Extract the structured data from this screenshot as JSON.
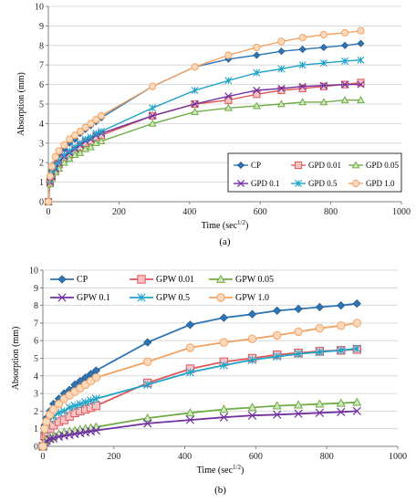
{
  "chart_data": [
    {
      "type": "line",
      "panel_label": "(a)",
      "ylabel": "Absorption (mm)",
      "xlabel_base": "Time (sec",
      "xlabel_sup": "1/2",
      "xlabel_end": ")",
      "xlim": [
        0,
        1000
      ],
      "ylim": [
        0,
        10
      ],
      "xticks": [
        0,
        200,
        400,
        600,
        800,
        1000
      ],
      "yticks": [
        0,
        1,
        2,
        3,
        4,
        5,
        6,
        7,
        8,
        9,
        10
      ],
      "grid": "horizontal",
      "legend_placement": "bottom-right",
      "series": [
        {
          "name": "CP",
          "color": "#2E75B6",
          "marker": "diamond",
          "x": [
            0,
            5,
            10,
            20,
            30,
            45,
            60,
            75,
            90,
            105,
            120,
            135,
            150,
            295,
            415,
            510,
            590,
            660,
            720,
            780,
            840,
            885
          ],
          "y": [
            0,
            1.2,
            1.6,
            2.0,
            2.4,
            2.7,
            3.0,
            3.2,
            3.5,
            3.7,
            3.9,
            4.1,
            4.3,
            5.9,
            6.9,
            7.3,
            7.5,
            7.7,
            7.8,
            7.9,
            8.0,
            8.1
          ]
        },
        {
          "name": "GPD 0.01",
          "color": "#E15759",
          "marker": "square",
          "x": [
            0,
            5,
            10,
            20,
            30,
            45,
            60,
            75,
            90,
            105,
            120,
            135,
            150,
            295,
            415,
            510,
            590,
            660,
            720,
            780,
            840,
            885
          ],
          "y": [
            0,
            1.0,
            1.3,
            1.6,
            1.9,
            2.2,
            2.4,
            2.6,
            2.8,
            3.0,
            3.1,
            3.3,
            3.4,
            4.4,
            5.0,
            5.2,
            5.5,
            5.7,
            5.8,
            5.9,
            6.0,
            6.1
          ]
        },
        {
          "name": "GPD 0.05",
          "color": "#70AD47",
          "marker": "triangle",
          "x": [
            0,
            5,
            10,
            20,
            30,
            45,
            60,
            75,
            90,
            105,
            120,
            135,
            150,
            295,
            415,
            510,
            590,
            660,
            720,
            780,
            840,
            885
          ],
          "y": [
            0,
            0.9,
            1.2,
            1.5,
            1.7,
            2.0,
            2.2,
            2.4,
            2.5,
            2.7,
            2.8,
            3.0,
            3.1,
            4.0,
            4.6,
            4.8,
            4.9,
            5.0,
            5.1,
            5.1,
            5.2,
            5.2
          ]
        },
        {
          "name": "GPD 0.1",
          "color": "#7030A0",
          "marker": "x",
          "x": [
            0,
            5,
            10,
            20,
            30,
            45,
            60,
            75,
            90,
            105,
            120,
            135,
            150,
            295,
            415,
            510,
            590,
            660,
            720,
            780,
            840,
            885
          ],
          "y": [
            0,
            1.0,
            1.3,
            1.7,
            2.0,
            2.3,
            2.5,
            2.7,
            2.9,
            3.1,
            3.2,
            3.4,
            3.5,
            4.4,
            5.0,
            5.4,
            5.7,
            5.8,
            5.9,
            5.95,
            6.0,
            6.0
          ]
        },
        {
          "name": "GPD 0.5",
          "color": "#1FA3C8",
          "marker": "asterisk",
          "x": [
            0,
            5,
            10,
            20,
            30,
            45,
            60,
            75,
            90,
            105,
            120,
            135,
            150,
            295,
            415,
            510,
            590,
            660,
            720,
            780,
            840,
            885
          ],
          "y": [
            0,
            1.1,
            1.4,
            1.8,
            2.1,
            2.4,
            2.6,
            2.8,
            3.0,
            3.2,
            3.3,
            3.5,
            3.6,
            4.8,
            5.7,
            6.2,
            6.6,
            6.8,
            7.0,
            7.1,
            7.2,
            7.25
          ]
        },
        {
          "name": "GPD 1.0",
          "color": "#F4A261",
          "marker": "circle",
          "x": [
            0,
            5,
            10,
            20,
            30,
            45,
            60,
            75,
            90,
            105,
            120,
            135,
            150,
            295,
            415,
            510,
            590,
            660,
            720,
            780,
            840,
            885
          ],
          "y": [
            0,
            1.3,
            1.8,
            2.3,
            2.6,
            2.9,
            3.2,
            3.4,
            3.6,
            3.8,
            4.0,
            4.2,
            4.4,
            5.9,
            6.9,
            7.5,
            7.9,
            8.2,
            8.4,
            8.55,
            8.65,
            8.75
          ]
        }
      ]
    },
    {
      "type": "line",
      "panel_label": "(b)",
      "ylabel": "Absorption (mm)",
      "xlabel_base": "Time (sec",
      "xlabel_sup": "1/2",
      "xlabel_end": ")",
      "xlim": [
        0,
        1000
      ],
      "ylim": [
        0,
        10
      ],
      "xticks": [
        0,
        200,
        400,
        600,
        800,
        1000
      ],
      "yticks": [
        0,
        1,
        2,
        3,
        4,
        5,
        6,
        7,
        8,
        9,
        10
      ],
      "grid": "horizontal",
      "legend_placement": "top-left",
      "series": [
        {
          "name": "CP",
          "color": "#2E75B6",
          "marker": "diamond",
          "x": [
            0,
            5,
            10,
            20,
            30,
            45,
            60,
            75,
            90,
            105,
            120,
            135,
            150,
            295,
            415,
            510,
            590,
            660,
            720,
            780,
            840,
            885
          ],
          "y": [
            0,
            1.2,
            1.6,
            2.0,
            2.4,
            2.7,
            3.0,
            3.2,
            3.5,
            3.7,
            3.9,
            4.1,
            4.3,
            5.9,
            6.9,
            7.3,
            7.5,
            7.7,
            7.8,
            7.9,
            8.0,
            8.1
          ]
        },
        {
          "name": "GPW 0.01",
          "color": "#E15759",
          "marker": "square",
          "x": [
            0,
            5,
            10,
            20,
            30,
            45,
            60,
            75,
            90,
            105,
            120,
            135,
            150,
            295,
            415,
            510,
            590,
            660,
            720,
            780,
            840,
            885
          ],
          "y": [
            0,
            0.6,
            0.8,
            1.0,
            1.2,
            1.4,
            1.5,
            1.7,
            1.9,
            2.0,
            2.1,
            2.2,
            2.3,
            3.6,
            4.4,
            4.8,
            5.0,
            5.2,
            5.3,
            5.4,
            5.45,
            5.5
          ]
        },
        {
          "name": "GPW 0.05",
          "color": "#70AD47",
          "marker": "triangle",
          "x": [
            0,
            5,
            10,
            20,
            30,
            45,
            60,
            75,
            90,
            105,
            120,
            135,
            150,
            295,
            415,
            510,
            590,
            660,
            720,
            780,
            840,
            885
          ],
          "y": [
            0,
            0.25,
            0.35,
            0.45,
            0.55,
            0.7,
            0.8,
            0.85,
            0.9,
            0.95,
            1.0,
            1.05,
            1.1,
            1.6,
            1.9,
            2.1,
            2.2,
            2.3,
            2.35,
            2.4,
            2.45,
            2.5
          ]
        },
        {
          "name": "GPW 0.1",
          "color": "#7030A0",
          "marker": "x",
          "x": [
            0,
            5,
            10,
            20,
            30,
            45,
            60,
            75,
            90,
            105,
            120,
            135,
            150,
            295,
            415,
            510,
            590,
            660,
            720,
            780,
            840,
            885
          ],
          "y": [
            0,
            0.2,
            0.3,
            0.4,
            0.45,
            0.55,
            0.6,
            0.65,
            0.7,
            0.75,
            0.8,
            0.85,
            0.9,
            1.3,
            1.5,
            1.65,
            1.75,
            1.8,
            1.85,
            1.9,
            1.95,
            2.0
          ]
        },
        {
          "name": "GPW 0.5",
          "color": "#1FA3C8",
          "marker": "asterisk",
          "x": [
            0,
            5,
            10,
            20,
            30,
            45,
            60,
            75,
            90,
            105,
            120,
            135,
            150,
            295,
            415,
            510,
            590,
            660,
            720,
            780,
            840,
            885
          ],
          "y": [
            0,
            0.9,
            1.2,
            1.5,
            1.7,
            1.9,
            2.0,
            2.2,
            2.3,
            2.4,
            2.5,
            2.6,
            2.7,
            3.5,
            4.2,
            4.6,
            4.9,
            5.1,
            5.25,
            5.35,
            5.45,
            5.55
          ]
        },
        {
          "name": "GPW 1.0",
          "color": "#F4A261",
          "marker": "circle",
          "x": [
            0,
            5,
            10,
            20,
            30,
            45,
            60,
            75,
            90,
            105,
            120,
            135,
            150,
            295,
            415,
            510,
            590,
            660,
            720,
            780,
            840,
            885
          ],
          "y": [
            0,
            1.0,
            1.4,
            1.8,
            2.1,
            2.4,
            2.7,
            2.9,
            3.1,
            3.3,
            3.5,
            3.7,
            3.9,
            4.8,
            5.6,
            5.9,
            6.1,
            6.3,
            6.5,
            6.7,
            6.85,
            7.0
          ]
        }
      ]
    }
  ]
}
